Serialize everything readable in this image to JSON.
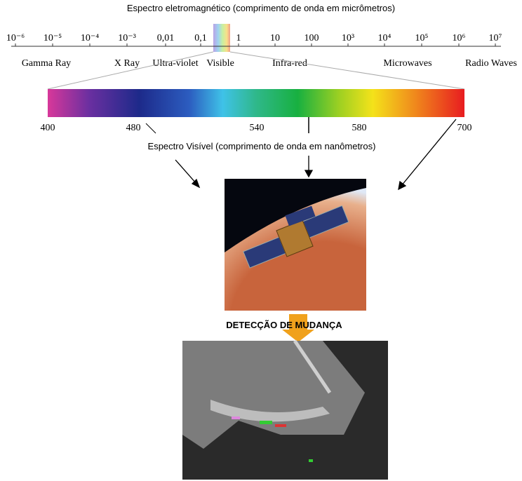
{
  "spectrum": {
    "title": "Espectro eletromagnético (comprimento de onda em micrômetros)",
    "scale_ticks": [
      "10⁻⁶",
      "10⁻⁵",
      "10⁻⁴",
      "10⁻³",
      "0,01",
      "0,1",
      "1",
      "10",
      "100",
      "10³",
      "10⁴",
      "10⁵",
      "10⁶",
      "10⁷"
    ],
    "bands": [
      "Gamma Ray",
      "X Ray",
      "Ultra-violet",
      "Visible",
      "Infra-red",
      "Microwaves",
      "Radio Waves"
    ]
  },
  "visible": {
    "ticks": [
      "400",
      "480",
      "540",
      "580",
      "700"
    ],
    "title": "Espectro Visível (comprimento de onda em nanômetros)"
  },
  "detection": {
    "label": "DETECÇÃO DE MUDANÇA"
  }
}
